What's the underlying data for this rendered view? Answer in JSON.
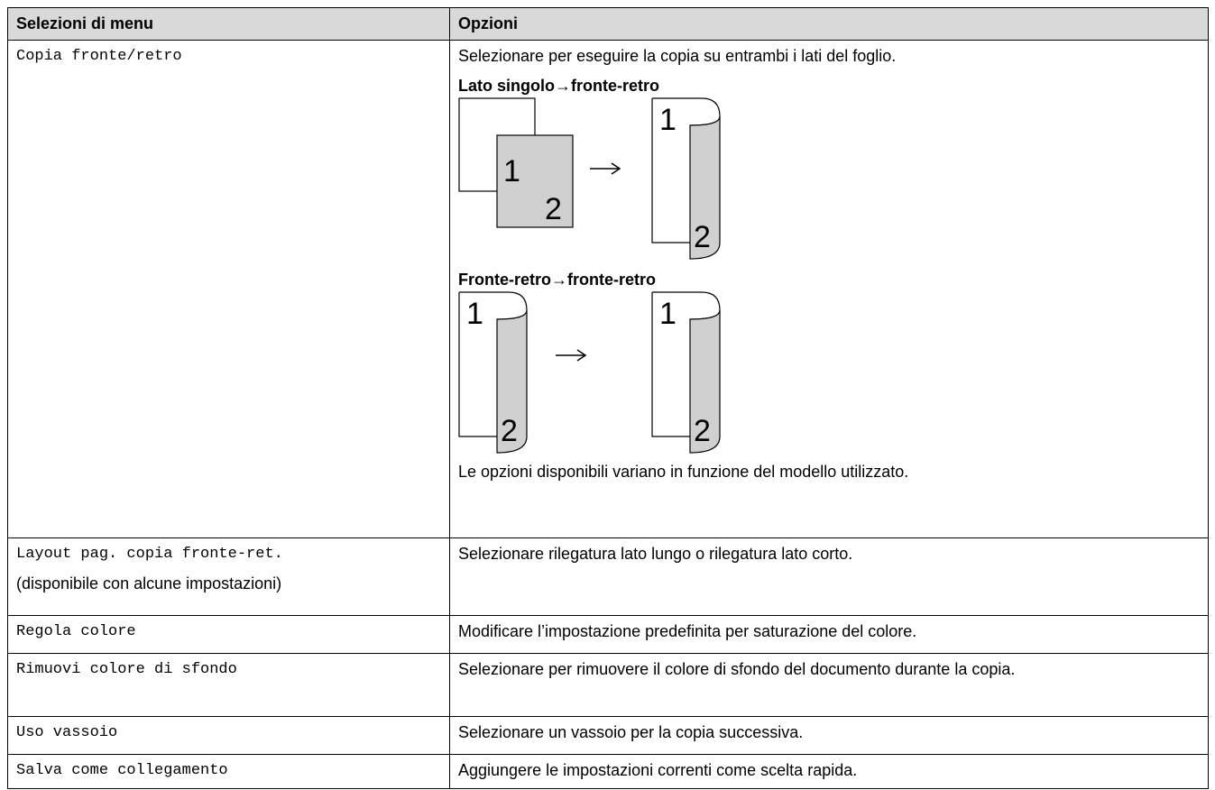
{
  "table": {
    "header": [
      "Selezioni di menu",
      "Opzioni"
    ],
    "rows": [
      {
        "menu": "Copia fronte/retro",
        "options": "Selezionare per eseguire la copia su entrambi i lati del foglio.",
        "diagrams": [
          {
            "label": "Lato singolo→fronte-retro",
            "numbers": [
              "1",
              "2",
              "1",
              "2"
            ]
          },
          {
            "label": "Fronte-retro→fronte-retro",
            "numbers": [
              "1",
              "2",
              "1",
              "2"
            ]
          }
        ],
        "note": "Le opzioni disponibili variano in funzione del modello utilizzato."
      },
      {
        "menu": "Layout pag. copia fronte-ret.",
        "menu_note": "(disponibile con alcune impostazioni)",
        "options": "Selezionare rilegatura lato lungo o rilegatura lato corto."
      },
      {
        "menu": "Regola colore",
        "options": "Modificare l’impostazione predefinita per saturazione del colore."
      },
      {
        "menu": "Rimuovi colore di sfondo",
        "options": "Selezionare per rimuovere il colore di sfondo del documento durante la copia."
      },
      {
        "menu": "Uso vassoio",
        "options": "Selezionare un vassoio per la copia successiva."
      },
      {
        "menu": "Salva come collegamento",
        "options": "Aggiungere le impostazioni correnti come scelta rapida."
      }
    ]
  }
}
